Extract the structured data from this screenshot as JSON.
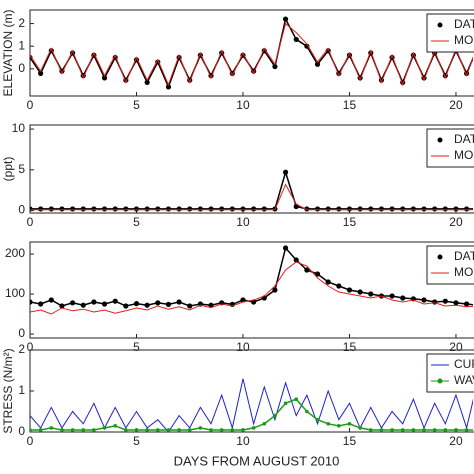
{
  "chart_data": [
    {
      "type": "line",
      "ylabel": "ELEVATION (m)",
      "xlim": [
        0,
        20.8
      ],
      "xticks": [
        0,
        5,
        10,
        15,
        20
      ],
      "ylim": [
        -1.2,
        2.6
      ],
      "yticks": [
        0,
        1,
        2
      ],
      "x": [
        0,
        0.5,
        1,
        1.5,
        2,
        2.5,
        3,
        3.5,
        4,
        4.5,
        5,
        5.5,
        6,
        6.5,
        7,
        7.5,
        8,
        8.5,
        9,
        9.5,
        10,
        10.5,
        11,
        11.5,
        12,
        12.5,
        13,
        13.5,
        14,
        14.5,
        15,
        15.5,
        16,
        16.5,
        17,
        17.5,
        18,
        18.5,
        19,
        19.5,
        20,
        20.5,
        21
      ],
      "series": [
        {
          "name": "DATA",
          "color": "#000000",
          "marker": true,
          "values": [
            0.5,
            -0.2,
            0.8,
            -0.1,
            0.7,
            -0.3,
            0.6,
            -0.4,
            0.5,
            -0.5,
            0.4,
            -0.6,
            0.3,
            -0.8,
            0.5,
            -0.5,
            0.6,
            -0.3,
            0.7,
            -0.2,
            0.6,
            -0.1,
            0.8,
            0.1,
            2.2,
            1.3,
            1.0,
            0.2,
            0.8,
            -0.2,
            0.6,
            -0.4,
            0.7,
            -0.5,
            0.5,
            -0.6,
            0.6,
            -0.4,
            0.7,
            -0.3,
            0.8,
            -0.2,
            0.9
          ]
        },
        {
          "name": "MODEL",
          "color": "#e0201c",
          "marker": false,
          "values": [
            0.6,
            -0.1,
            0.9,
            -0.2,
            0.8,
            -0.4,
            0.7,
            -0.3,
            0.6,
            -0.6,
            0.5,
            -0.5,
            0.4,
            -0.7,
            0.6,
            -0.6,
            0.7,
            -0.4,
            0.8,
            -0.3,
            0.7,
            -0.2,
            0.9,
            0.2,
            2.0,
            1.6,
            1.1,
            0.3,
            0.9,
            -0.3,
            0.7,
            -0.5,
            0.8,
            -0.6,
            0.6,
            -0.7,
            0.7,
            -0.5,
            0.8,
            -0.4,
            0.9,
            -0.3,
            1.0
          ]
        }
      ]
    },
    {
      "type": "line",
      "ylabel": "(ppt)",
      "xlim": [
        0,
        20.8
      ],
      "xticks": [
        0,
        5,
        10,
        15,
        20
      ],
      "ylim": [
        -0.3,
        10.5
      ],
      "yticks": [
        0,
        5,
        10
      ],
      "x": [
        0,
        0.5,
        1,
        1.5,
        2,
        2.5,
        3,
        3.5,
        4,
        4.5,
        5,
        5.5,
        6,
        6.5,
        7,
        7.5,
        8,
        8.5,
        9,
        9.5,
        10,
        10.5,
        11,
        11.5,
        12,
        12.5,
        13,
        13.5,
        14,
        14.5,
        15,
        15.5,
        16,
        16.5,
        17,
        17.5,
        18,
        18.5,
        19,
        19.5,
        20,
        20.5,
        21
      ],
      "series": [
        {
          "name": "DATA",
          "color": "#000000",
          "marker": true,
          "values": [
            0.2,
            0.2,
            0.2,
            0.2,
            0.2,
            0.2,
            0.2,
            0.2,
            0.2,
            0.2,
            0.2,
            0.2,
            0.2,
            0.2,
            0.2,
            0.2,
            0.2,
            0.2,
            0.2,
            0.2,
            0.2,
            0.2,
            0.2,
            0.2,
            4.7,
            0.5,
            0.2,
            0.2,
            0.2,
            0.2,
            0.2,
            0.2,
            0.2,
            0.2,
            0.2,
            0.2,
            0.2,
            0.2,
            0.2,
            0.2,
            0.2,
            0.2,
            0.2
          ]
        },
        {
          "name": "MODEL",
          "color": "#e0201c",
          "marker": false,
          "values": [
            0.1,
            0.1,
            0.1,
            0.1,
            0.1,
            0.1,
            0.1,
            0.1,
            0.1,
            0.1,
            0.1,
            0.1,
            0.1,
            0.1,
            0.1,
            0.1,
            0.1,
            0.1,
            0.1,
            0.1,
            0.1,
            0.1,
            0.1,
            0.1,
            3.2,
            0.8,
            0.1,
            0.1,
            0.1,
            0.1,
            0.1,
            0.1,
            0.1,
            0.1,
            0.1,
            0.1,
            0.1,
            0.1,
            0.1,
            0.1,
            0.1,
            0.1,
            0.1
          ]
        }
      ]
    },
    {
      "type": "line",
      "xlim": [
        0,
        20.8
      ],
      "xticks": [
        0,
        5,
        10,
        15,
        20
      ],
      "ylim": [
        -10,
        230
      ],
      "yticks": [
        0,
        100,
        200
      ],
      "x": [
        0,
        0.5,
        1,
        1.5,
        2,
        2.5,
        3,
        3.5,
        4,
        4.5,
        5,
        5.5,
        6,
        6.5,
        7,
        7.5,
        8,
        8.5,
        9,
        9.5,
        10,
        10.5,
        11,
        11.5,
        12,
        12.5,
        13,
        13.5,
        14,
        14.5,
        15,
        15.5,
        16,
        16.5,
        17,
        17.5,
        18,
        18.5,
        19,
        19.5,
        20,
        20.5,
        21
      ],
      "series": [
        {
          "name": "DATA",
          "color": "#000000",
          "marker": true,
          "values": [
            80,
            75,
            85,
            70,
            78,
            72,
            80,
            75,
            82,
            70,
            76,
            72,
            78,
            74,
            80,
            70,
            75,
            72,
            78,
            74,
            85,
            80,
            90,
            110,
            215,
            185,
            160,
            150,
            130,
            120,
            110,
            105,
            100,
            95,
            95,
            90,
            88,
            85,
            80,
            82,
            78,
            75,
            72
          ]
        },
        {
          "name": "MODEL",
          "color": "#e0201c",
          "marker": false,
          "values": [
            55,
            60,
            50,
            65,
            58,
            62,
            55,
            60,
            52,
            58,
            65,
            60,
            70,
            62,
            68,
            60,
            72,
            66,
            75,
            70,
            80,
            85,
            95,
            120,
            160,
            180,
            170,
            140,
            120,
            105,
            100,
            95,
            90,
            95,
            85,
            80,
            85,
            75,
            78,
            70,
            72,
            68,
            70
          ]
        }
      ]
    },
    {
      "type": "line",
      "ylabel": "STRESS (N/m²)",
      "xlabel": "DAYS FROM AUGUST 2010",
      "xlim": [
        0,
        20.8
      ],
      "xticks": [
        0,
        5,
        10,
        15,
        20
      ],
      "ylim": [
        0,
        2
      ],
      "yticks": [
        0,
        1,
        2
      ],
      "x": [
        0,
        0.5,
        1,
        1.5,
        2,
        2.5,
        3,
        3.5,
        4,
        4.5,
        5,
        5.5,
        6,
        6.5,
        7,
        7.5,
        8,
        8.5,
        9,
        9.5,
        10,
        10.5,
        11,
        11.5,
        12,
        12.5,
        13,
        13.5,
        14,
        14.5,
        15,
        15.5,
        16,
        16.5,
        17,
        17.5,
        18,
        18.5,
        19,
        19.5,
        20,
        20.5,
        21
      ],
      "series": [
        {
          "name": "CURRENT",
          "color": "#1f1fd0",
          "marker": false,
          "values": [
            0.4,
            0.1,
            0.6,
            0.1,
            0.5,
            0.2,
            0.7,
            0.1,
            0.6,
            0.1,
            0.5,
            0.1,
            0.3,
            0.0,
            0.4,
            0.1,
            0.6,
            0.2,
            0.9,
            0.1,
            1.3,
            0.2,
            1.1,
            0.3,
            1.2,
            0.4,
            0.9,
            0.2,
            1.0,
            0.3,
            0.7,
            0.1,
            0.6,
            0.1,
            0.5,
            0.2,
            0.8,
            0.1,
            0.7,
            0.2,
            0.9,
            0.1,
            1.2
          ]
        },
        {
          "name": "WAVE",
          "color": "#1a9a1a",
          "marker": true,
          "values": [
            0.05,
            0.05,
            0.1,
            0.05,
            0.05,
            0.05,
            0.05,
            0.1,
            0.15,
            0.05,
            0.05,
            0.05,
            0.05,
            0.05,
            0.05,
            0.05,
            0.1,
            0.05,
            0.05,
            0.05,
            0.05,
            0.1,
            0.2,
            0.4,
            0.7,
            0.8,
            0.5,
            0.3,
            0.2,
            0.15,
            0.2,
            0.1,
            0.05,
            0.05,
            0.05,
            0.05,
            0.05,
            0.05,
            0.05,
            0.05,
            0.05,
            0.05,
            0.05
          ]
        }
      ]
    }
  ]
}
